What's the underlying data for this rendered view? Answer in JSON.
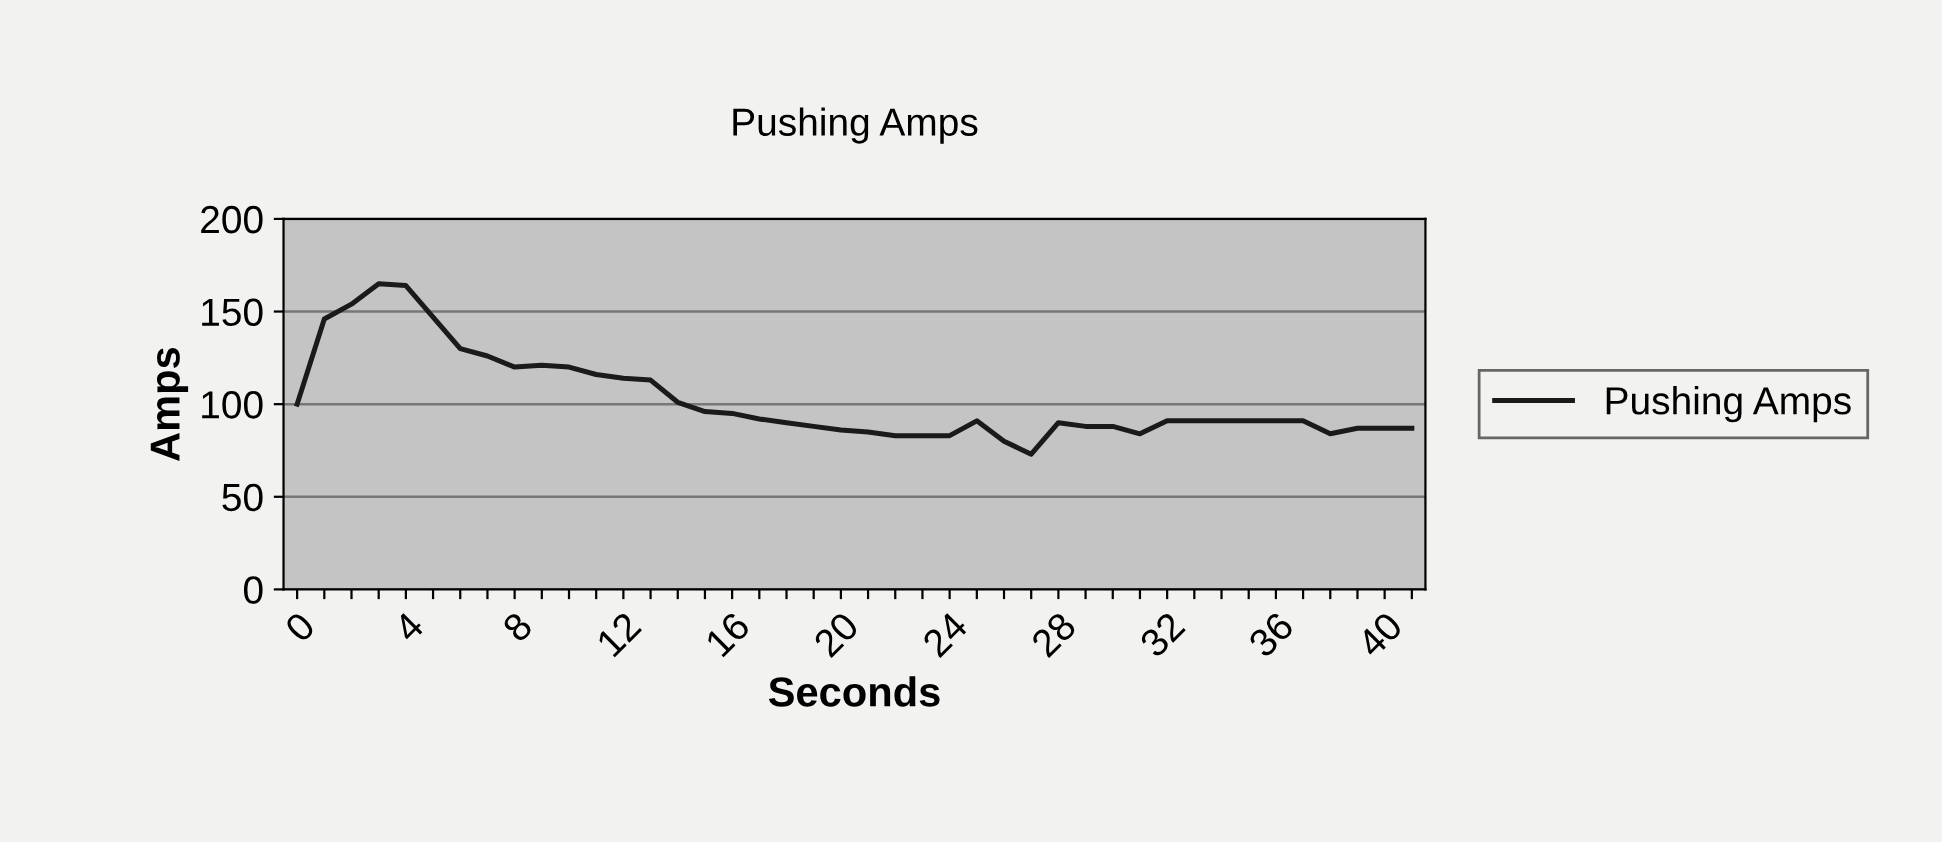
{
  "chart_data": {
    "type": "line",
    "title": "Pushing Amps",
    "xlabel": "Seconds",
    "ylabel": "Amps",
    "categories": [
      "0",
      null,
      null,
      null,
      "4",
      null,
      null,
      null,
      "8",
      null,
      null,
      null,
      "12",
      null,
      null,
      null,
      "16",
      null,
      null,
      null,
      "20",
      null,
      null,
      null,
      "24",
      null,
      null,
      null,
      "28",
      null,
      null,
      null,
      "32",
      null,
      null,
      null,
      "36",
      null,
      null,
      null,
      "40",
      null
    ],
    "series": [
      {
        "name": "Pushing Amps",
        "color": "#1a1a1a",
        "values": [
          100,
          146,
          154,
          165,
          164,
          147,
          130,
          126,
          120,
          121,
          120,
          116,
          114,
          113,
          101,
          96,
          95,
          92,
          90,
          88,
          86,
          85,
          83,
          83,
          83,
          91,
          80,
          73,
          90,
          88,
          88,
          84,
          91,
          91,
          91,
          91,
          91,
          91,
          84,
          87,
          87,
          87
        ]
      }
    ],
    "ylim": [
      0,
      200
    ],
    "yticks": [
      0,
      50,
      100,
      150,
      200
    ],
    "grid": "y",
    "legend": "right",
    "marker": "none",
    "line_style": "solid"
  }
}
